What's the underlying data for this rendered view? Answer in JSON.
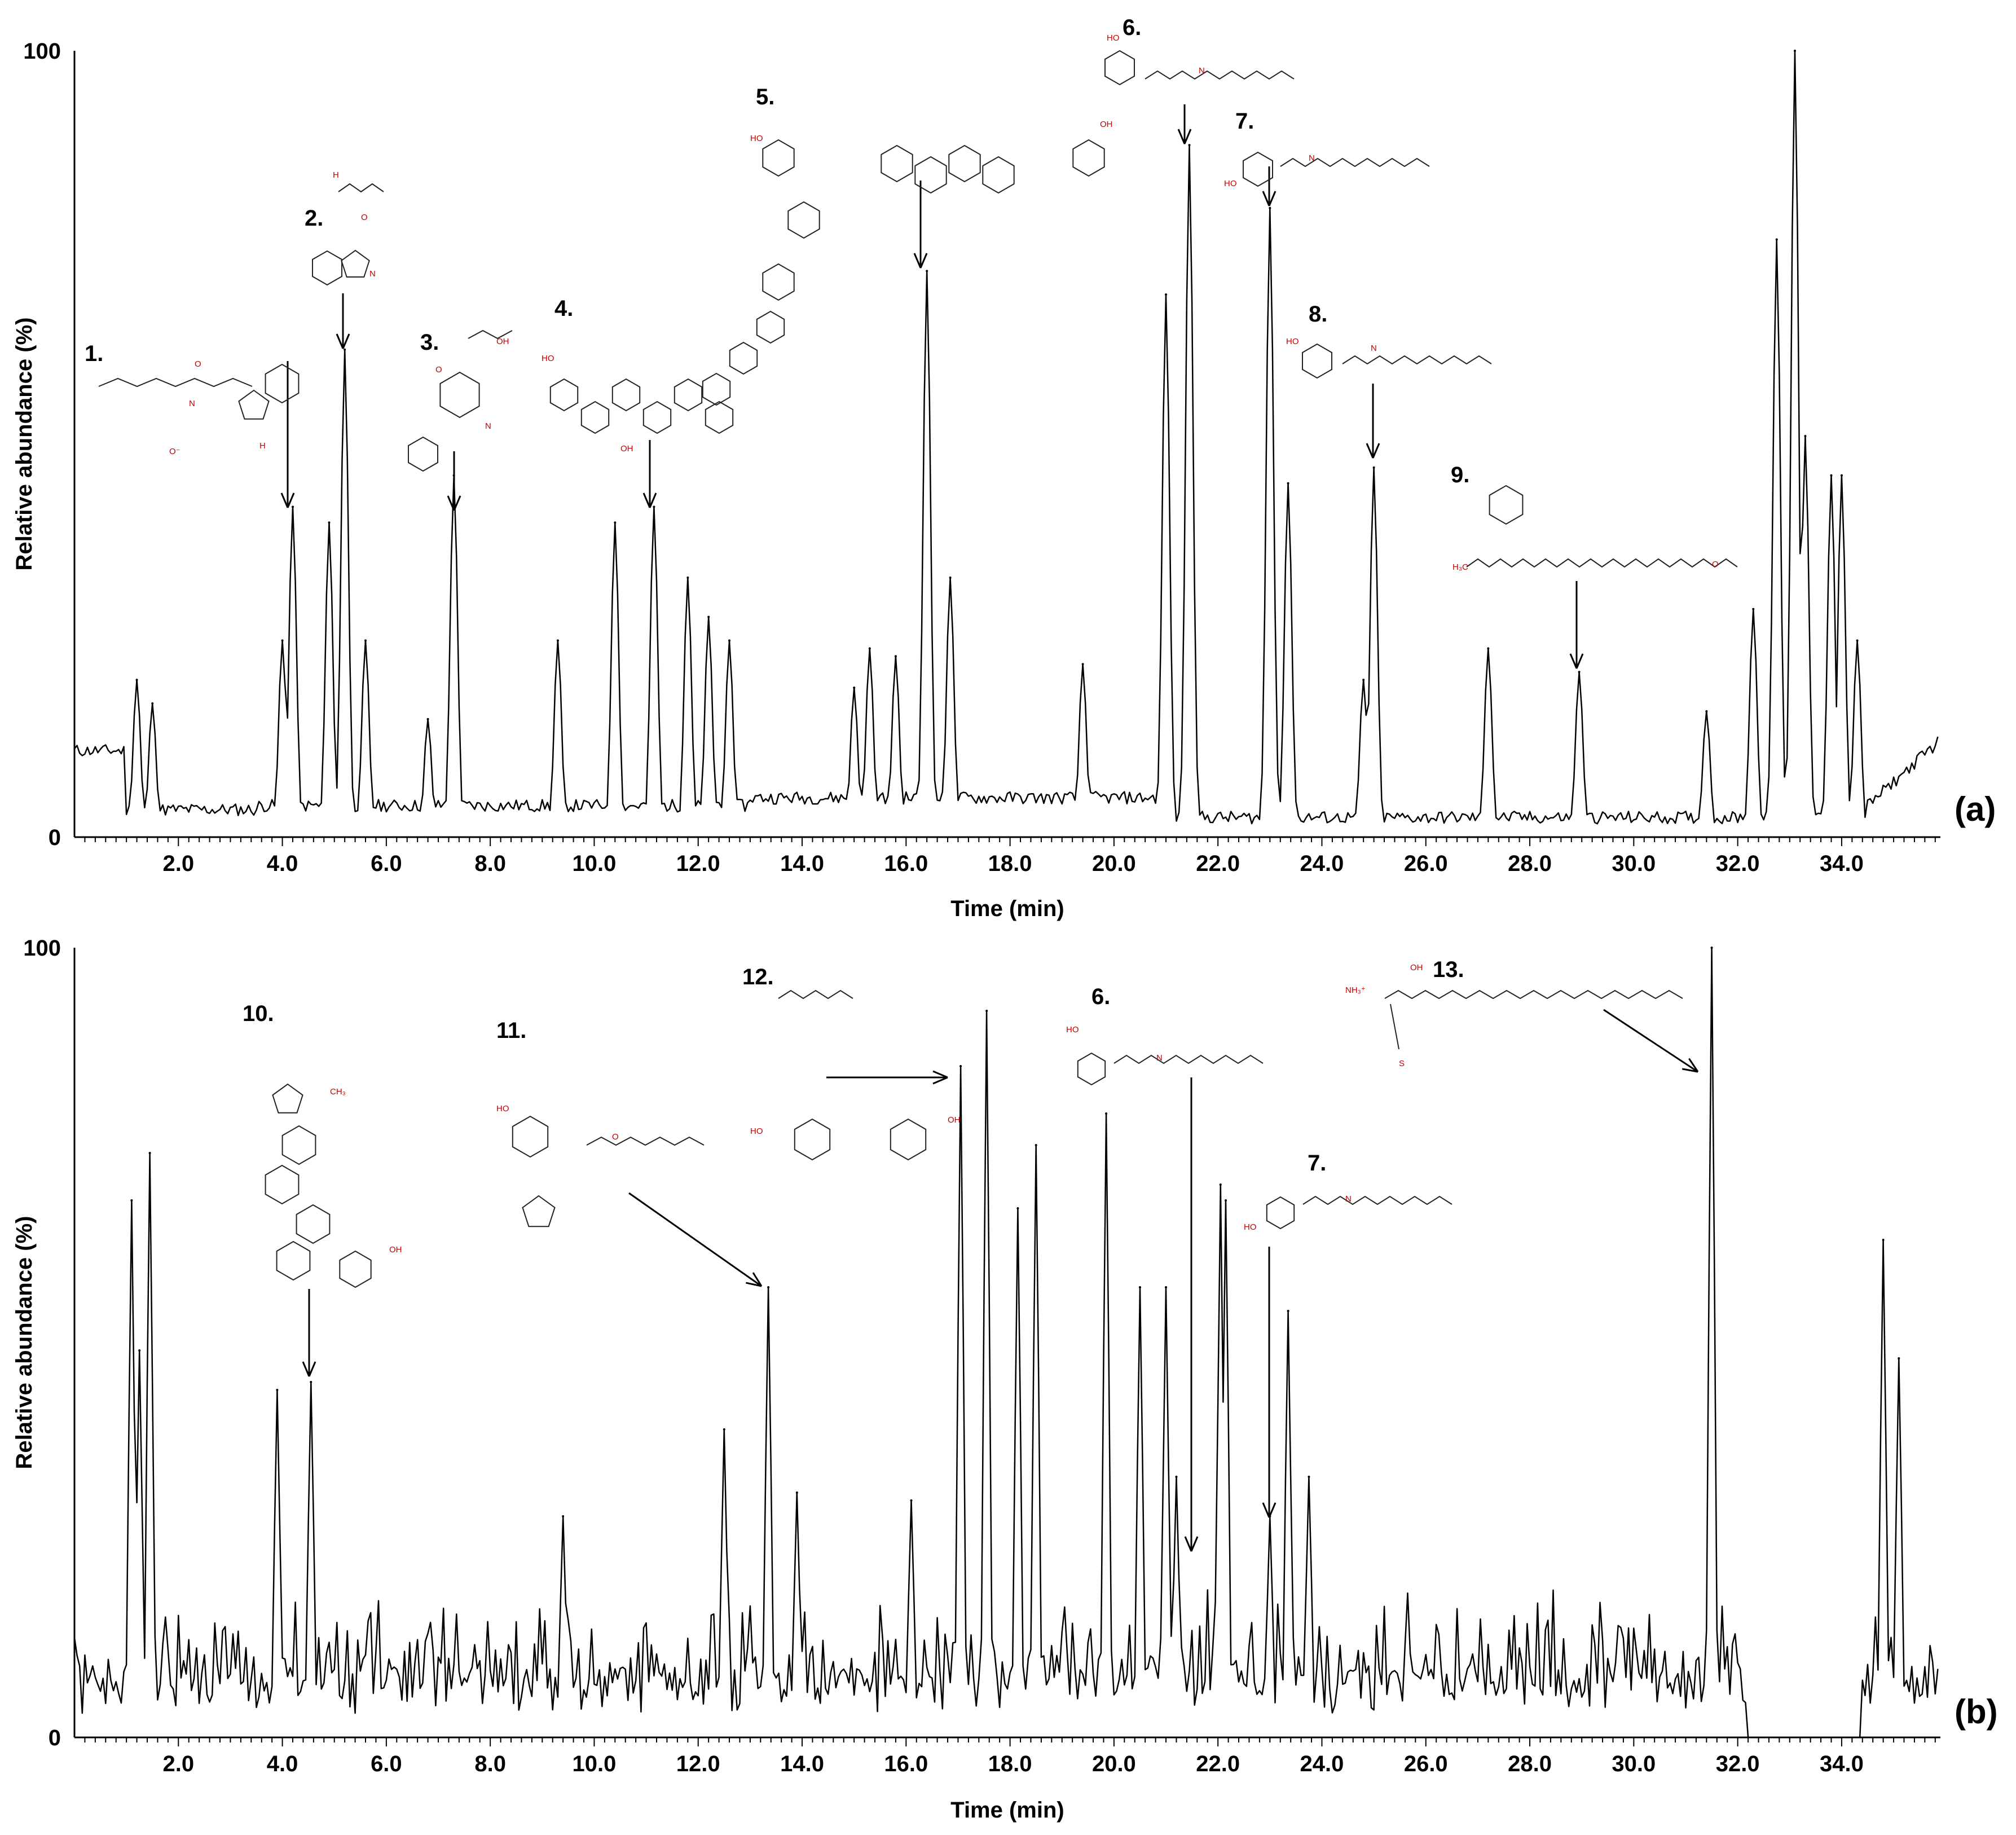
{
  "figure": {
    "y_axis_label": "Relative abundance (%)",
    "x_axis_label": "Time (min)"
  },
  "chart_data": [
    {
      "type": "line",
      "panel_label": "(a)",
      "xlabel": "Time (min)",
      "ylabel": "Relative abundance (%)",
      "xlim": [
        0,
        35.9
      ],
      "ylim": [
        0,
        100
      ],
      "x_ticks": [
        "2.0",
        "4.0",
        "6.0",
        "8.0",
        "10.0",
        "12.0",
        "14.0",
        "16.0",
        "18.0",
        "20.0",
        "22.0",
        "24.0",
        "26.0",
        "28.0",
        "30.0",
        "32.0",
        "34.0"
      ],
      "y_ticks": [
        "0",
        "100"
      ],
      "peaks": [
        {
          "x": 1.2,
          "y": 20
        },
        {
          "x": 1.5,
          "y": 17
        },
        {
          "x": 4.0,
          "y": 25
        },
        {
          "x": 4.2,
          "y": 42
        },
        {
          "x": 4.9,
          "y": 40
        },
        {
          "x": 5.2,
          "y": 62
        },
        {
          "x": 5.6,
          "y": 25
        },
        {
          "x": 6.8,
          "y": 15
        },
        {
          "x": 7.3,
          "y": 46
        },
        {
          "x": 9.3,
          "y": 25
        },
        {
          "x": 10.4,
          "y": 40
        },
        {
          "x": 11.15,
          "y": 42
        },
        {
          "x": 11.8,
          "y": 33
        },
        {
          "x": 12.2,
          "y": 28
        },
        {
          "x": 12.6,
          "y": 25
        },
        {
          "x": 15.0,
          "y": 19
        },
        {
          "x": 15.3,
          "y": 24
        },
        {
          "x": 15.8,
          "y": 23
        },
        {
          "x": 16.4,
          "y": 72
        },
        {
          "x": 16.85,
          "y": 33
        },
        {
          "x": 19.4,
          "y": 22
        },
        {
          "x": 21.0,
          "y": 69
        },
        {
          "x": 21.45,
          "y": 88
        },
        {
          "x": 23.0,
          "y": 80
        },
        {
          "x": 23.35,
          "y": 45
        },
        {
          "x": 24.8,
          "y": 20
        },
        {
          "x": 25.0,
          "y": 47
        },
        {
          "x": 27.2,
          "y": 24
        },
        {
          "x": 28.95,
          "y": 21
        },
        {
          "x": 31.4,
          "y": 16
        },
        {
          "x": 32.3,
          "y": 29
        },
        {
          "x": 32.75,
          "y": 76
        },
        {
          "x": 33.1,
          "y": 100
        },
        {
          "x": 33.3,
          "y": 51
        },
        {
          "x": 33.8,
          "y": 46
        },
        {
          "x": 34.0,
          "y": 46
        },
        {
          "x": 34.3,
          "y": 25
        }
      ],
      "annotations": [
        {
          "label": "1.",
          "x": 4.2
        },
        {
          "label": "2.",
          "x": 5.2
        },
        {
          "label": "3.",
          "x": 7.3
        },
        {
          "label": "4.",
          "x": 11.15
        },
        {
          "label": "5.",
          "x": 16.4
        },
        {
          "label": "6.",
          "x": 21.45
        },
        {
          "label": "7.",
          "x": 23.0
        },
        {
          "label": "8.",
          "x": 25.0
        },
        {
          "label": "9.",
          "x": 28.95
        }
      ]
    },
    {
      "type": "line",
      "panel_label": "(b)",
      "xlabel": "Time (min)",
      "ylabel": "Relative abundance (%)",
      "xlim": [
        0,
        35.9
      ],
      "ylim": [
        0,
        100
      ],
      "x_ticks": [
        "2.0",
        "4.0",
        "6.0",
        "8.0",
        "10.0",
        "12.0",
        "14.0",
        "16.0",
        "18.0",
        "20.0",
        "22.0",
        "24.0",
        "26.0",
        "28.0",
        "30.0",
        "32.0",
        "34.0"
      ],
      "y_ticks": [
        "0",
        "100"
      ],
      "peaks": [
        {
          "x": 1.1,
          "y": 68
        },
        {
          "x": 1.25,
          "y": 49
        },
        {
          "x": 1.45,
          "y": 74
        },
        {
          "x": 3.9,
          "y": 44
        },
        {
          "x": 4.55,
          "y": 45
        },
        {
          "x": 9.4,
          "y": 28
        },
        {
          "x": 12.5,
          "y": 39
        },
        {
          "x": 13.35,
          "y": 57
        },
        {
          "x": 13.9,
          "y": 31
        },
        {
          "x": 16.1,
          "y": 30
        },
        {
          "x": 17.05,
          "y": 85
        },
        {
          "x": 17.55,
          "y": 92
        },
        {
          "x": 18.15,
          "y": 67
        },
        {
          "x": 18.5,
          "y": 75
        },
        {
          "x": 19.85,
          "y": 79
        },
        {
          "x": 20.5,
          "y": 57
        },
        {
          "x": 21.0,
          "y": 57
        },
        {
          "x": 21.2,
          "y": 33
        },
        {
          "x": 22.05,
          "y": 70
        },
        {
          "x": 22.15,
          "y": 68
        },
        {
          "x": 23.0,
          "y": 28
        },
        {
          "x": 23.35,
          "y": 54
        },
        {
          "x": 23.75,
          "y": 33
        },
        {
          "x": 31.5,
          "y": 100
        },
        {
          "x": 34.8,
          "y": 63
        },
        {
          "x": 35.1,
          "y": 48
        }
      ],
      "annotations": [
        {
          "label": "10.",
          "x": 4.55
        },
        {
          "label": "11.",
          "x": 13.35
        },
        {
          "label": "12.",
          "x": 17.05
        },
        {
          "label": "6.",
          "x": 21.6
        },
        {
          "label": "7.",
          "x": 23.0
        },
        {
          "label": "13.",
          "x": 31.5
        }
      ]
    }
  ],
  "structures": {
    "atoms": [
      "O",
      "N",
      "H",
      "OH",
      "O⁻",
      "HO",
      "CH₃",
      "H₃C",
      "NH₃⁺",
      "S"
    ]
  }
}
